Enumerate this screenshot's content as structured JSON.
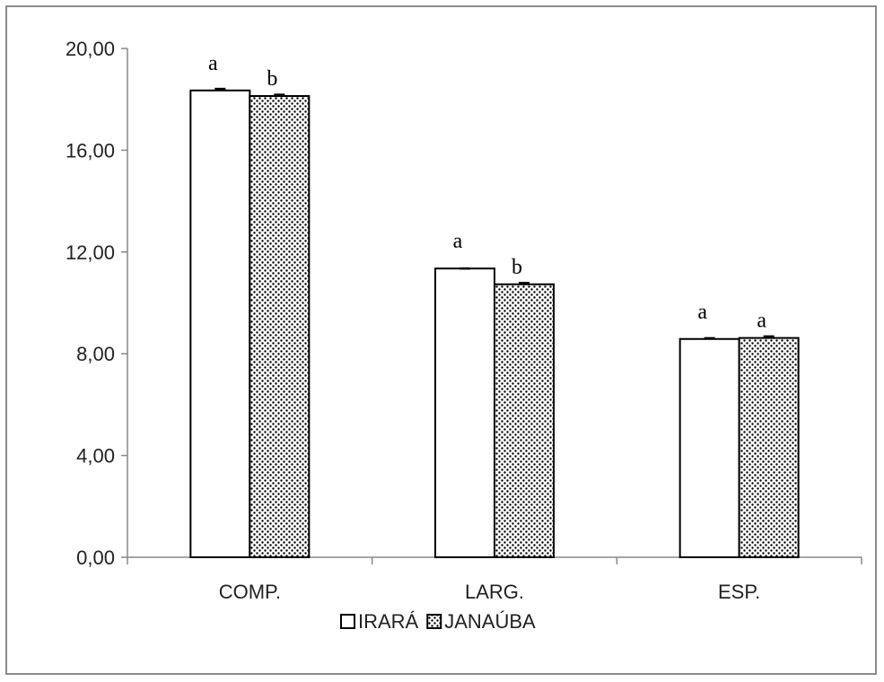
{
  "chart_data": {
    "type": "bar",
    "categories": [
      "COMP.",
      "LARG.",
      "ESP."
    ],
    "series": [
      {
        "name": "IRARÁ",
        "values": [
          18.35,
          11.35,
          8.58
        ],
        "errors": [
          0.06,
          0.0,
          0.03
        ],
        "significance": [
          "a",
          "a",
          "a"
        ],
        "fill": "#ffffff"
      },
      {
        "name": "JANAÚBA",
        "values": [
          18.13,
          10.73,
          8.62
        ],
        "errors": [
          0.05,
          0.05,
          0.06
        ],
        "significance": [
          "b",
          "b",
          "a"
        ],
        "fill": "dotted"
      }
    ],
    "ylim": [
      0,
      20
    ],
    "yticks": [
      "0,00",
      "4,00",
      "8,00",
      "12,00",
      "16,00",
      "20,00"
    ],
    "ytick_values": [
      0,
      4,
      8,
      12,
      16,
      20
    ],
    "grid": false,
    "legend_position": "bottom"
  }
}
